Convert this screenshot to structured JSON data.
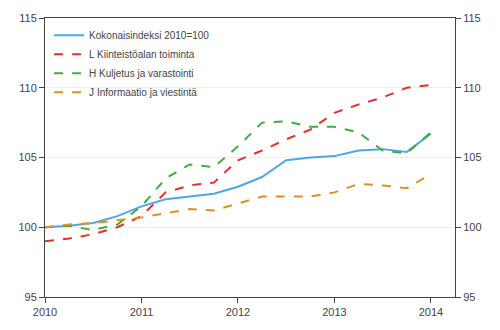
{
  "chart_data": {
    "type": "line",
    "x": [
      2010.0,
      2010.25,
      2010.5,
      2010.75,
      2011.0,
      2011.25,
      2011.5,
      2011.75,
      2012.0,
      2012.25,
      2012.5,
      2012.75,
      2013.0,
      2013.25,
      2013.5,
      2013.75,
      2014.0
    ],
    "series": [
      {
        "name": "Kokonaisindeksi 2010=100",
        "color": "#4da6e8",
        "line_style": "solid",
        "values": [
          100.0,
          100.1,
          100.3,
          100.8,
          101.5,
          102.0,
          102.2,
          102.4,
          102.9,
          103.6,
          104.8,
          105.0,
          105.1,
          105.5,
          105.6,
          105.4,
          106.7
        ]
      },
      {
        "name": "L Kiinteistöalan toiminta",
        "color": "#e03030",
        "line_style": "dashed",
        "values": [
          99.0,
          99.2,
          99.5,
          100.0,
          100.8,
          102.5,
          103.0,
          103.2,
          104.8,
          105.5,
          106.3,
          107.0,
          108.2,
          108.8,
          109.3,
          110.0,
          110.2
        ]
      },
      {
        "name": "H Kuljetus ja varastointi",
        "color": "#44aa44",
        "line_style": "dashed",
        "values": [
          100.0,
          100.1,
          99.8,
          100.2,
          101.5,
          103.5,
          104.5,
          104.3,
          105.8,
          107.5,
          107.6,
          107.2,
          107.2,
          106.8,
          105.5,
          105.3,
          106.8
        ]
      },
      {
        "name": "J Informaatio ja viestintä",
        "color": "#e09020",
        "line_style": "dashed",
        "values": [
          100.0,
          100.2,
          100.3,
          100.5,
          100.7,
          101.0,
          101.3,
          101.2,
          101.7,
          102.2,
          102.2,
          102.2,
          102.5,
          103.1,
          103.0,
          102.8,
          103.8
        ]
      }
    ],
    "xlim": [
      2010.0,
      2014.25
    ],
    "xticks": [
      2010,
      2011,
      2012,
      2013,
      2014
    ],
    "ylim": [
      95,
      115
    ],
    "yticks": [
      95,
      100,
      105,
      110,
      115
    ],
    "y2lim": [
      95,
      115
    ],
    "y2ticks": [
      95,
      100,
      105,
      110,
      115
    ],
    "grid": true,
    "legend": "upper left"
  }
}
